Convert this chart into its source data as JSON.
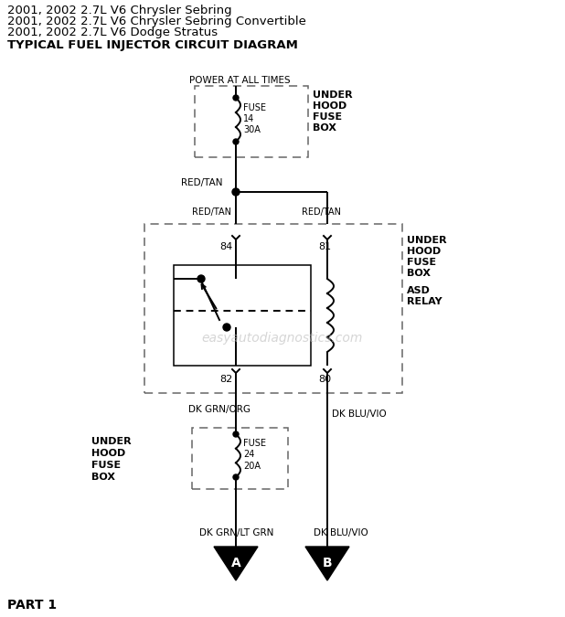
{
  "title_lines": [
    "2001, 2002 2.7L V6 Chrysler Sebring",
    "2001, 2002 2.7L V6 Chrysler Sebring Convertible",
    "2001, 2002 2.7L V6 Dodge Stratus",
    "TYPICAL FUEL INJECTOR CIRCUIT DIAGRAM"
  ],
  "watermark": "easyautodiagnostics.com",
  "part_label": "PART 1",
  "bg_color": "#ffffff",
  "line_color": "#000000",
  "dashed_color": "#666666"
}
